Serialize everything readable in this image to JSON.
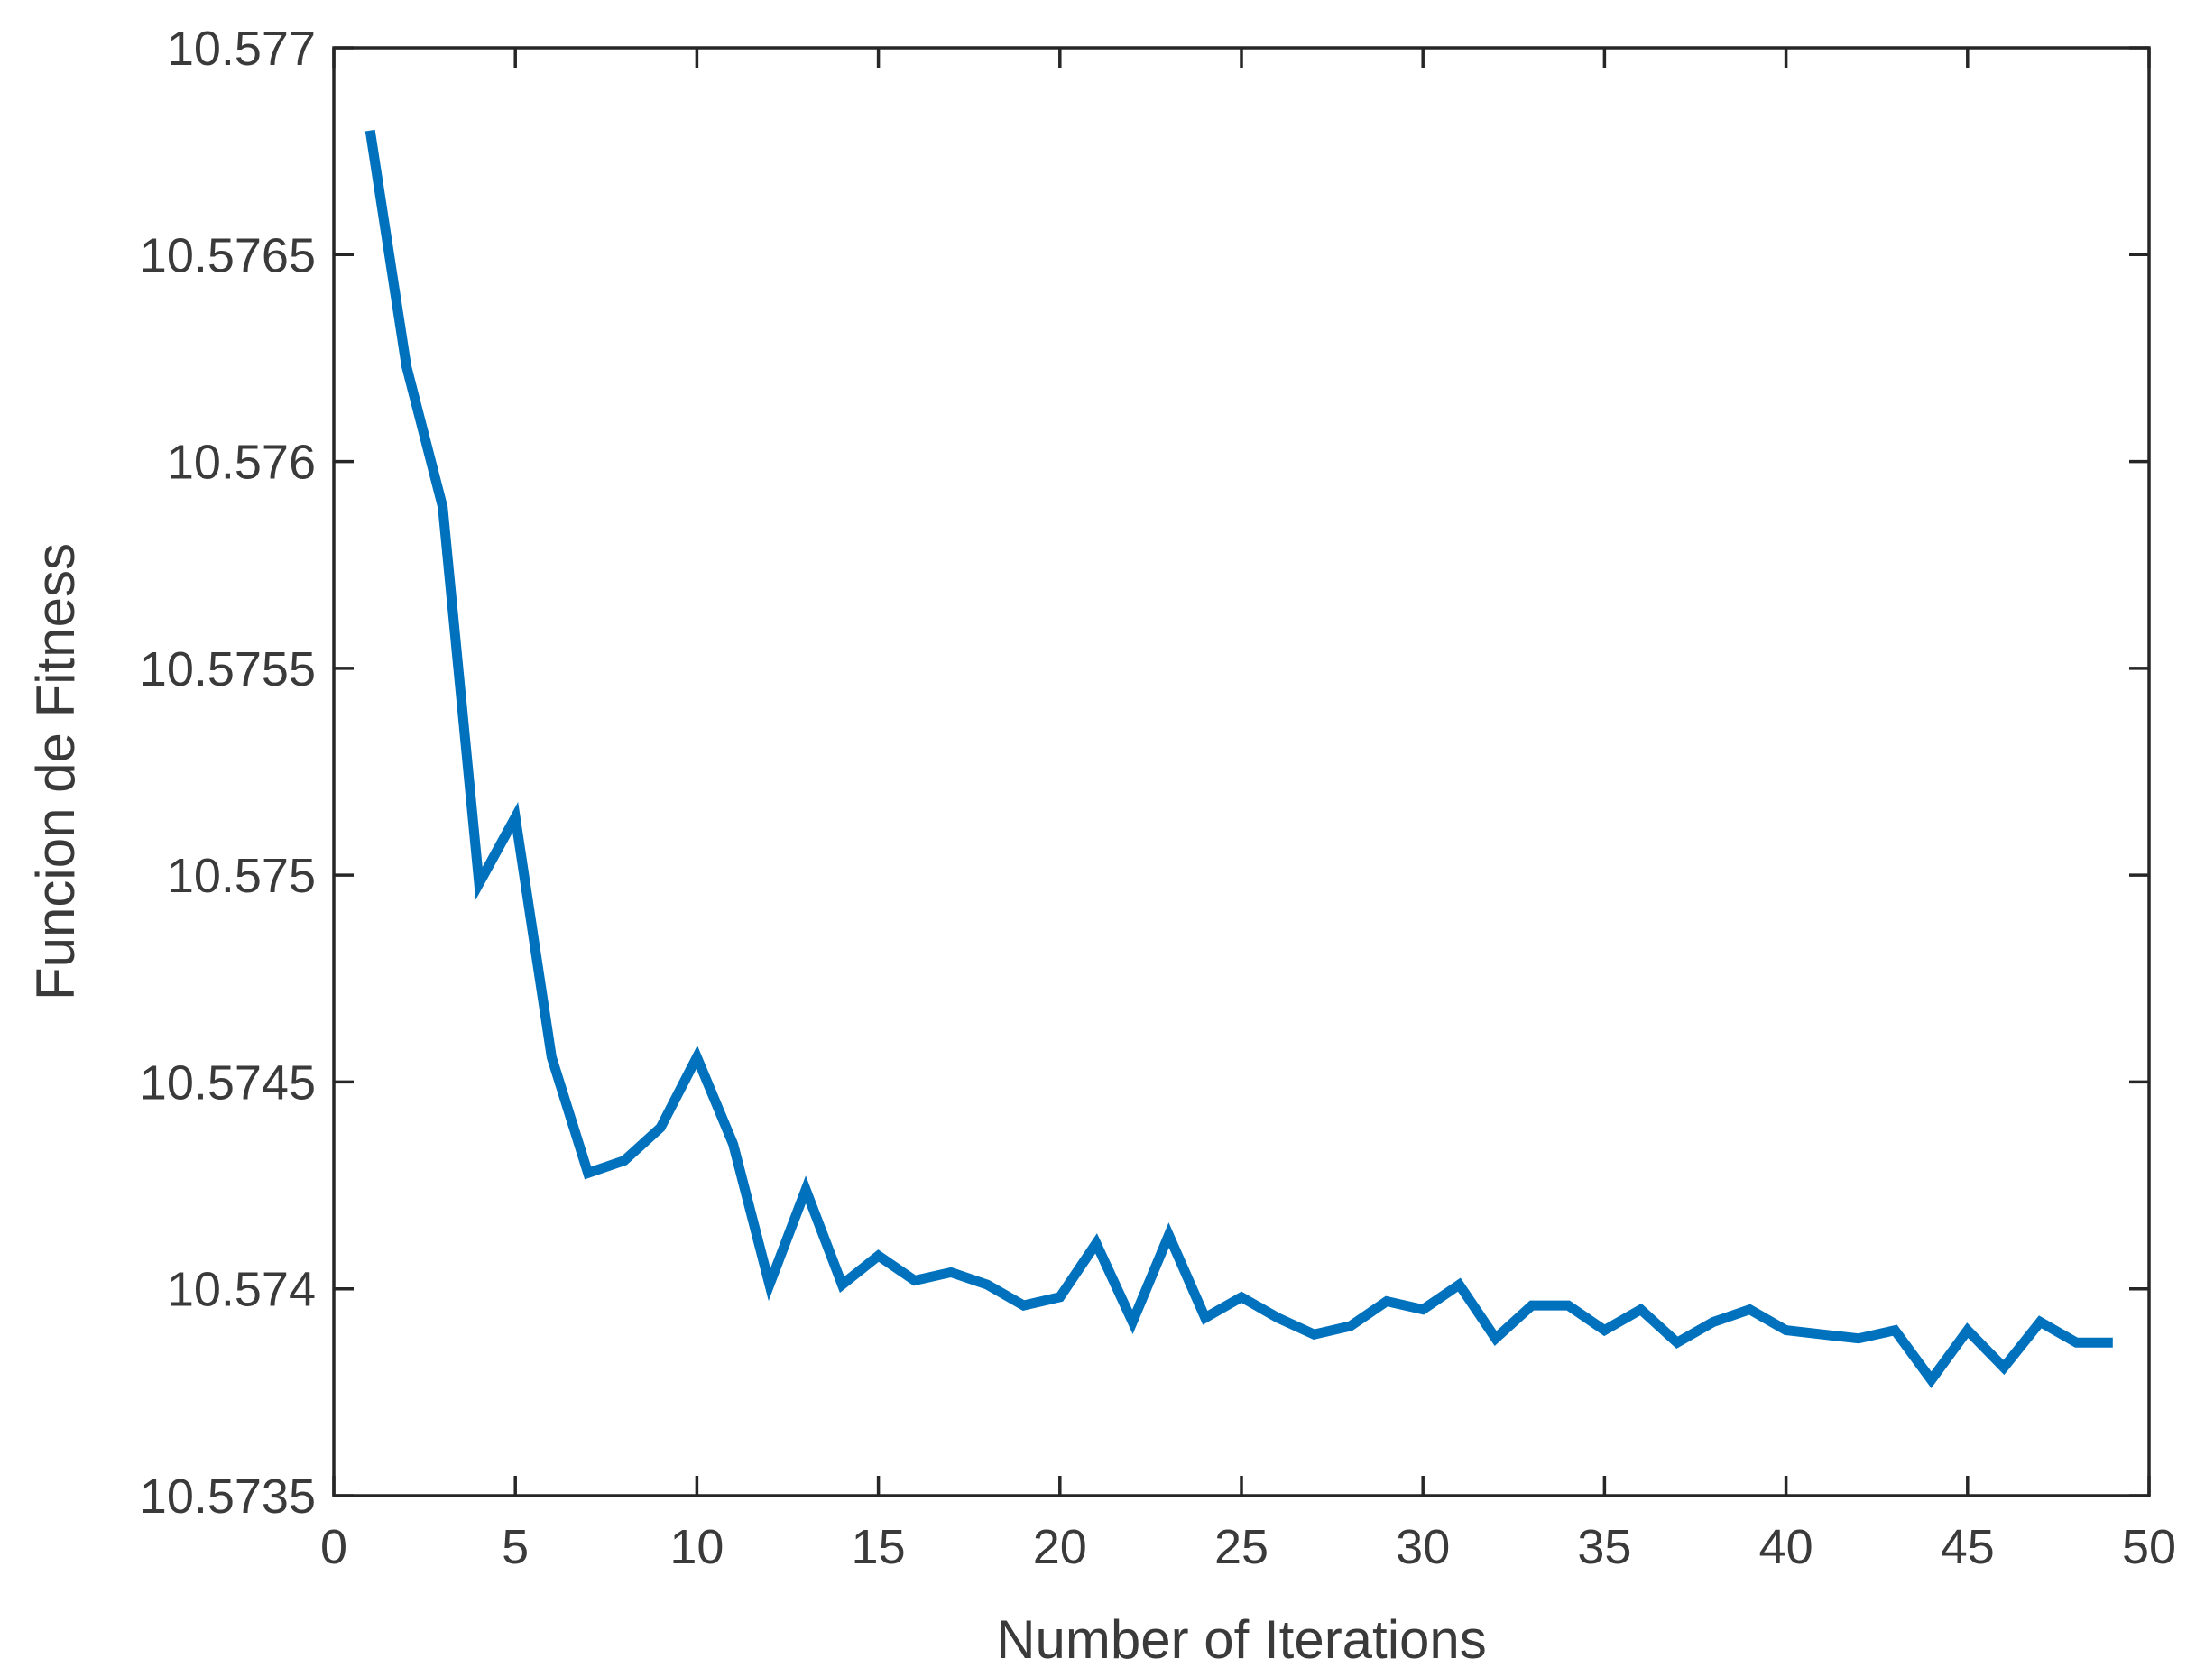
{
  "chart_data": {
    "type": "line",
    "title": "",
    "xlabel": "Number of Iterations",
    "ylabel": "Funcion de Fitness",
    "xlim": [
      0,
      50
    ],
    "ylim": [
      10.5735,
      10.577
    ],
    "xticks": [
      0,
      5,
      10,
      15,
      20,
      25,
      30,
      35,
      40,
      45,
      50
    ],
    "xtick_labels": [
      "0",
      "5",
      "10",
      "15",
      "20",
      "25",
      "30",
      "35",
      "40",
      "45",
      "50"
    ],
    "yticks": [
      10.5735,
      10.574,
      10.5745,
      10.575,
      10.5755,
      10.576,
      10.5765,
      10.577
    ],
    "ytick_labels": [
      "10.5735",
      "10.574",
      "10.5745",
      "10.575",
      "10.5755",
      "10.576",
      "10.5765",
      "10.577"
    ],
    "grid": false,
    "legend": "none",
    "series": [
      {
        "color": "#0072BD",
        "x": [
          1,
          2,
          3,
          4,
          5,
          6,
          7,
          8,
          9,
          10,
          11,
          12,
          13,
          14,
          15,
          16,
          17,
          18,
          19,
          20,
          21,
          22,
          23,
          24,
          25,
          26,
          27,
          28,
          29,
          30,
          31,
          32,
          33,
          34,
          35,
          36,
          37,
          38,
          39,
          40,
          41,
          42,
          43,
          44,
          45,
          46,
          47,
          48,
          49
        ],
        "y": [
          10.5768,
          10.57623,
          10.57589,
          10.57498,
          10.57514,
          10.57456,
          10.57428,
          10.57431,
          10.57439,
          10.57456,
          10.57435,
          10.57401,
          10.57424,
          10.57401,
          10.57408,
          10.57402,
          10.57404,
          10.57401,
          10.57396,
          10.57398,
          10.57411,
          10.57392,
          10.57413,
          10.57393,
          10.57398,
          10.57393,
          10.57389,
          10.57391,
          10.57397,
          10.57395,
          10.57401,
          10.57388,
          10.57396,
          10.57396,
          10.5739,
          10.57395,
          10.57387,
          10.57392,
          10.57395,
          10.5739,
          10.57389,
          10.57388,
          10.5739,
          10.57378,
          10.5739,
          10.57381,
          10.57392,
          10.57387,
          10.57387
        ]
      }
    ]
  }
}
